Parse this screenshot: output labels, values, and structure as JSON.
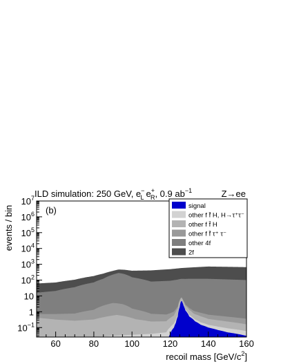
{
  "chart_data": {
    "type": "area",
    "title_left": "ILD simulation: 250 GeV, e",
    "title_beam1_sup": "−",
    "title_beam1_sub": "L",
    "title_beam2": "e",
    "title_beam2_sup": "+",
    "title_beam2_sub": "R",
    "title_lumi": ", 0.9 ab",
    "title_lumi_sup": "−1",
    "title_right": "Z→ee",
    "panel_label": "(b)",
    "xlabel": "recoil mass [GeV/c",
    "xlabel_sup": "2",
    "xlabel_end": "]",
    "ylabel": "events / bin",
    "xlim": [
      50,
      160
    ],
    "ylim_log10": [
      -1.6,
      7
    ],
    "y_log_scale": true,
    "stacked": true,
    "x_ticks": [
      {
        "value": 60,
        "label": "60"
      },
      {
        "value": 80,
        "label": "80"
      },
      {
        "value": 100,
        "label": "100"
      },
      {
        "value": 120,
        "label": "120"
      },
      {
        "value": 140,
        "label": "140"
      },
      {
        "value": 160,
        "label": "160"
      }
    ],
    "y_ticks": [
      {
        "exp": -1,
        "label": "10",
        "sup": "−1"
      },
      {
        "exp": 0,
        "label": "1",
        "sup": ""
      },
      {
        "exp": 1,
        "label": "10",
        "sup": ""
      },
      {
        "exp": 2,
        "label": "10",
        "sup": "2"
      },
      {
        "exp": 3,
        "label": "10",
        "sup": "3"
      },
      {
        "exp": 4,
        "label": "10",
        "sup": "4"
      },
      {
        "exp": 5,
        "label": "10",
        "sup": "5"
      },
      {
        "exp": 6,
        "label": "10",
        "sup": "6"
      },
      {
        "exp": 7,
        "label": "10",
        "sup": "7"
      }
    ],
    "legend_position": "top-right",
    "series": [
      {
        "name": "signal",
        "color": "#0000cc",
        "x": [
          50,
          118,
          120,
          122,
          123,
          124,
          125,
          125.5,
          126,
          127,
          128,
          130,
          133,
          136,
          140,
          145,
          150,
          155,
          160
        ],
        "y": [
          0,
          0,
          0.04,
          0.1,
          0.2,
          0.5,
          2,
          4,
          5,
          2.5,
          1.2,
          0.5,
          0.25,
          0.15,
          0.1,
          0.07,
          0.05,
          0.04,
          0.03
        ]
      },
      {
        "name": "other f f̄ H, H→τ⁺τ⁻",
        "color": "#d2d2d2",
        "x": [
          50,
          70,
          90,
          110,
          118,
          122,
          124,
          125,
          126,
          128,
          132,
          140,
          150,
          160
        ],
        "y": [
          0.02,
          0.02,
          0.03,
          0.04,
          0.05,
          0.08,
          0.15,
          0.4,
          0.45,
          0.2,
          0.08,
          0.05,
          0.04,
          0.03
        ]
      },
      {
        "name": "other f f̄ H",
        "color": "#b3b3b3",
        "x": [
          50,
          60,
          70,
          80,
          88,
          92,
          96,
          102,
          110,
          118,
          122,
          124,
          125,
          126,
          128,
          132,
          140,
          150,
          160
        ],
        "y": [
          0.4,
          0.3,
          0.25,
          0.3,
          0.5,
          0.6,
          0.5,
          0.3,
          0.2,
          0.2,
          0.4,
          1.0,
          2.5,
          2.3,
          1.0,
          0.4,
          0.2,
          0.15,
          0.1
        ]
      },
      {
        "name": "other f f̄ τ⁺ τ⁻",
        "color": "#999999",
        "x": [
          50,
          60,
          70,
          80,
          90,
          95,
          100,
          110,
          120,
          125,
          130,
          140,
          150,
          160
        ],
        "y": [
          0.3,
          0.4,
          0.5,
          1.0,
          3,
          2.5,
          1.2,
          0.5,
          0.4,
          0.5,
          0.4,
          0.3,
          0.25,
          0.2
        ]
      },
      {
        "name": "other 4f",
        "color": "#7f7f7f",
        "x": [
          50,
          60,
          70,
          80,
          85,
          90,
          93,
          96,
          100,
          110,
          120,
          125,
          130,
          140,
          150,
          160
        ],
        "y": [
          15,
          20,
          35,
          70,
          120,
          220,
          280,
          240,
          150,
          80,
          90,
          110,
          120,
          120,
          110,
          100
        ]
      },
      {
        "name": "2f",
        "color": "#4d4d4d",
        "x": [
          50,
          60,
          70,
          80,
          90,
          100,
          110,
          120,
          130,
          140,
          150,
          160
        ],
        "y": [
          45,
          50,
          70,
          110,
          160,
          240,
          330,
          400,
          500,
          600,
          580,
          560
        ]
      }
    ]
  }
}
